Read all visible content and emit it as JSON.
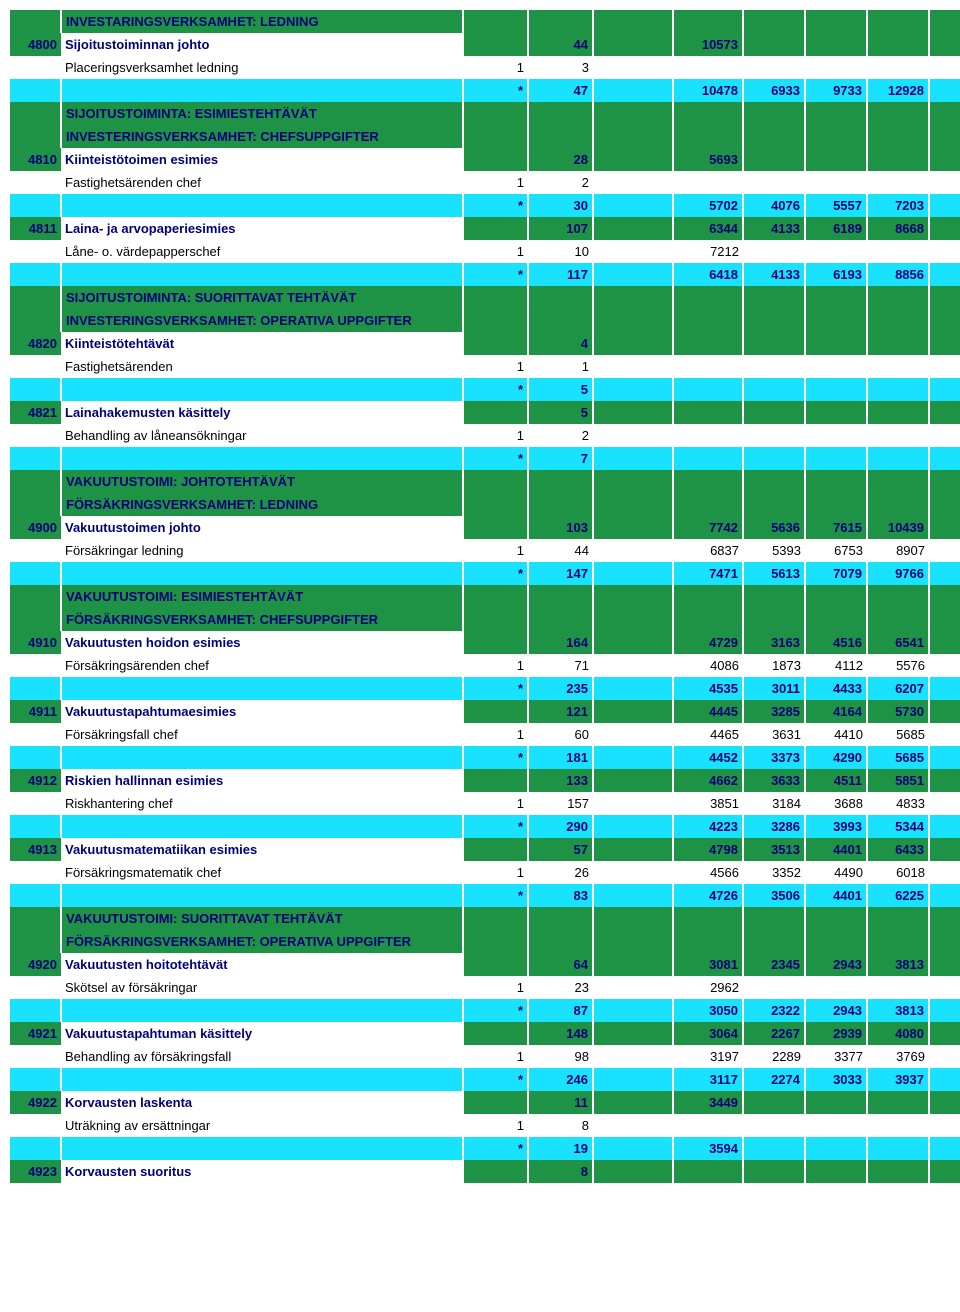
{
  "colors": {
    "green": "#1f9345",
    "cyan": "#19e2ff",
    "navy": "#00007a",
    "white": "#ffffff",
    "black": "#000000"
  },
  "rows": [
    {
      "t": "hdr",
      "label": "INVESTARINGSVERKSAMHET: LEDNING"
    },
    {
      "t": "grn",
      "code": "4800",
      "label": "Sijoitustoiminnan johto",
      "c": [
        "",
        "44",
        "",
        "10573",
        "",
        "",
        "",
        ""
      ]
    },
    {
      "t": "plain",
      "label": "Placeringsverksamhet ledning",
      "c": [
        "1",
        "3",
        "",
        "",
        "",
        "",
        "",
        ""
      ]
    },
    {
      "t": "cyan",
      "c": [
        "*",
        "47",
        "",
        "10478",
        "6933",
        "9733",
        "12928",
        ""
      ]
    },
    {
      "t": "hdr",
      "label": "SIJOITUSTOIMINTA: ESIMIESTEHTÄVÄT"
    },
    {
      "t": "hdr",
      "label": "INVESTERINGSVERKSAMHET: CHEFSUPPGIFTER"
    },
    {
      "t": "grn",
      "code": "4810",
      "label": "Kiinteistötoimen esimies",
      "c": [
        "",
        "28",
        "",
        "5693",
        "",
        "",
        "",
        ""
      ]
    },
    {
      "t": "plain",
      "label": "Fastighetsärenden chef",
      "c": [
        "1",
        "2",
        "",
        "",
        "",
        "",
        "",
        ""
      ]
    },
    {
      "t": "cyan",
      "c": [
        "*",
        "30",
        "",
        "5702",
        "4076",
        "5557",
        "7203",
        ""
      ]
    },
    {
      "t": "grn",
      "code": "4811",
      "label": "Laina- ja arvopaperiesimies",
      "c": [
        "",
        "107",
        "",
        "6344",
        "4133",
        "6189",
        "8668",
        ""
      ]
    },
    {
      "t": "plain",
      "label": "Låne- o. värdepapperschef",
      "c": [
        "1",
        "10",
        "",
        "7212",
        "",
        "",
        "",
        ""
      ]
    },
    {
      "t": "cyan",
      "c": [
        "*",
        "117",
        "",
        "6418",
        "4133",
        "6193",
        "8856",
        ""
      ]
    },
    {
      "t": "hdr",
      "label": "SIJOITUSTOIMINTA: SUORITTAVAT TEHTÄVÄT"
    },
    {
      "t": "hdr",
      "label": "INVESTERINGSVERKSAMHET: OPERATIVA UPPGIFTER"
    },
    {
      "t": "grn",
      "code": "4820",
      "label": "Kiinteistötehtävät",
      "c": [
        "",
        "4",
        "",
        "",
        "",
        "",
        "",
        ""
      ]
    },
    {
      "t": "plain",
      "label": "Fastighetsärenden",
      "c": [
        "1",
        "1",
        "",
        "",
        "",
        "",
        "",
        ""
      ]
    },
    {
      "t": "cyan",
      "c": [
        "*",
        "5",
        "",
        "",
        "",
        "",
        "",
        ""
      ]
    },
    {
      "t": "grn",
      "code": "4821",
      "label": "Lainahakemusten käsittely",
      "c": [
        "",
        "5",
        "",
        "",
        "",
        "",
        "",
        ""
      ]
    },
    {
      "t": "plain",
      "label": "Behandling av låneansökningar",
      "c": [
        "1",
        "2",
        "",
        "",
        "",
        "",
        "",
        ""
      ]
    },
    {
      "t": "cyan",
      "c": [
        "*",
        "7",
        "",
        "",
        "",
        "",
        "",
        ""
      ]
    },
    {
      "t": "hdr",
      "label": "VAKUUTUSTOIMI: JOHTOTEHTÄVÄT"
    },
    {
      "t": "hdr",
      "label": "FÖRSÄKRINGSVERKSAMHET: LEDNING"
    },
    {
      "t": "grn",
      "code": "4900",
      "label": "Vakuutustoimen johto",
      "c": [
        "",
        "103",
        "",
        "7742",
        "5636",
        "7615",
        "10439",
        ""
      ]
    },
    {
      "t": "plain",
      "label": "Försäkringar ledning",
      "c": [
        "1",
        "44",
        "",
        "6837",
        "5393",
        "6753",
        "8907",
        ""
      ]
    },
    {
      "t": "cyan",
      "c": [
        "*",
        "147",
        "",
        "7471",
        "5613",
        "7079",
        "9766",
        ""
      ]
    },
    {
      "t": "hdr",
      "label": "VAKUUTUSTOIMI: ESIMIESTEHTÄVÄT"
    },
    {
      "t": "hdr",
      "label": "FÖRSÄKRINGSVERKSAMHET: CHEFSUPPGIFTER"
    },
    {
      "t": "grn",
      "code": "4910",
      "label": "Vakuutusten hoidon esimies",
      "c": [
        "",
        "164",
        "",
        "4729",
        "3163",
        "4516",
        "6541",
        ""
      ]
    },
    {
      "t": "plain",
      "label": "Försäkringsärenden chef",
      "c": [
        "1",
        "71",
        "",
        "4086",
        "1873",
        "4112",
        "5576",
        ""
      ]
    },
    {
      "t": "cyan",
      "c": [
        "*",
        "235",
        "",
        "4535",
        "3011",
        "4433",
        "6207",
        ""
      ]
    },
    {
      "t": "grn",
      "code": "4911",
      "label": "Vakuutustapahtumaesimies",
      "c": [
        "",
        "121",
        "",
        "4445",
        "3285",
        "4164",
        "5730",
        ""
      ]
    },
    {
      "t": "plain",
      "label": "Försäkringsfall chef",
      "c": [
        "1",
        "60",
        "",
        "4465",
        "3631",
        "4410",
        "5685",
        ""
      ]
    },
    {
      "t": "cyan",
      "c": [
        "*",
        "181",
        "",
        "4452",
        "3373",
        "4290",
        "5685",
        ""
      ]
    },
    {
      "t": "grn",
      "code": "4912",
      "label": "Riskien hallinnan esimies",
      "c": [
        "",
        "133",
        "",
        "4662",
        "3633",
        "4511",
        "5851",
        ""
      ]
    },
    {
      "t": "plain",
      "label": "Riskhantering chef",
      "c": [
        "1",
        "157",
        "",
        "3851",
        "3184",
        "3688",
        "4833",
        ""
      ]
    },
    {
      "t": "cyan",
      "c": [
        "*",
        "290",
        "",
        "4223",
        "3286",
        "3993",
        "5344",
        ""
      ]
    },
    {
      "t": "grn",
      "code": "4913",
      "label": "Vakuutusmatematiikan esimies",
      "c": [
        "",
        "57",
        "",
        "4798",
        "3513",
        "4401",
        "6433",
        ""
      ]
    },
    {
      "t": "plain",
      "label": "Försäkringsmatematik chef",
      "c": [
        "1",
        "26",
        "",
        "4566",
        "3352",
        "4490",
        "6018",
        ""
      ]
    },
    {
      "t": "cyan",
      "c": [
        "*",
        "83",
        "",
        "4726",
        "3506",
        "4401",
        "6225",
        ""
      ]
    },
    {
      "t": "hdr",
      "label": "VAKUUTUSTOIMI: SUORITTAVAT TEHTÄVÄT"
    },
    {
      "t": "hdr",
      "label": "FÖRSÄKRINGSVERKSAMHET: OPERATIVA UPPGIFTER"
    },
    {
      "t": "grn",
      "code": "4920",
      "label": "Vakuutusten hoitotehtävät",
      "c": [
        "",
        "64",
        "",
        "3081",
        "2345",
        "2943",
        "3813",
        ""
      ]
    },
    {
      "t": "plain",
      "label": "Skötsel av försäkringar",
      "c": [
        "1",
        "23",
        "",
        "2962",
        "",
        "",
        "",
        ""
      ]
    },
    {
      "t": "cyan",
      "c": [
        "*",
        "87",
        "",
        "3050",
        "2322",
        "2943",
        "3813",
        ""
      ]
    },
    {
      "t": "grn",
      "code": "4921",
      "label": "Vakuutustapahtuman käsittely",
      "c": [
        "",
        "148",
        "",
        "3064",
        "2267",
        "2939",
        "4080",
        ""
      ]
    },
    {
      "t": "plain",
      "label": "Behandling av försäkringsfall",
      "c": [
        "1",
        "98",
        "",
        "3197",
        "2289",
        "3377",
        "3769",
        ""
      ]
    },
    {
      "t": "cyan",
      "c": [
        "*",
        "246",
        "",
        "3117",
        "2274",
        "3033",
        "3937",
        ""
      ]
    },
    {
      "t": "grn",
      "code": "4922",
      "label": "Korvausten laskenta",
      "c": [
        "",
        "11",
        "",
        "3449",
        "",
        "",
        "",
        ""
      ]
    },
    {
      "t": "plain",
      "label": "Uträkning av ersättningar",
      "c": [
        "1",
        "8",
        "",
        "",
        "",
        "",
        "",
        ""
      ]
    },
    {
      "t": "cyan",
      "c": [
        "*",
        "19",
        "",
        "3594",
        "",
        "",
        "",
        ""
      ]
    },
    {
      "t": "grn",
      "code": "4923",
      "label": "Korvausten suoritus",
      "c": [
        "",
        "8",
        "",
        "",
        "",
        "",
        "",
        ""
      ]
    }
  ]
}
